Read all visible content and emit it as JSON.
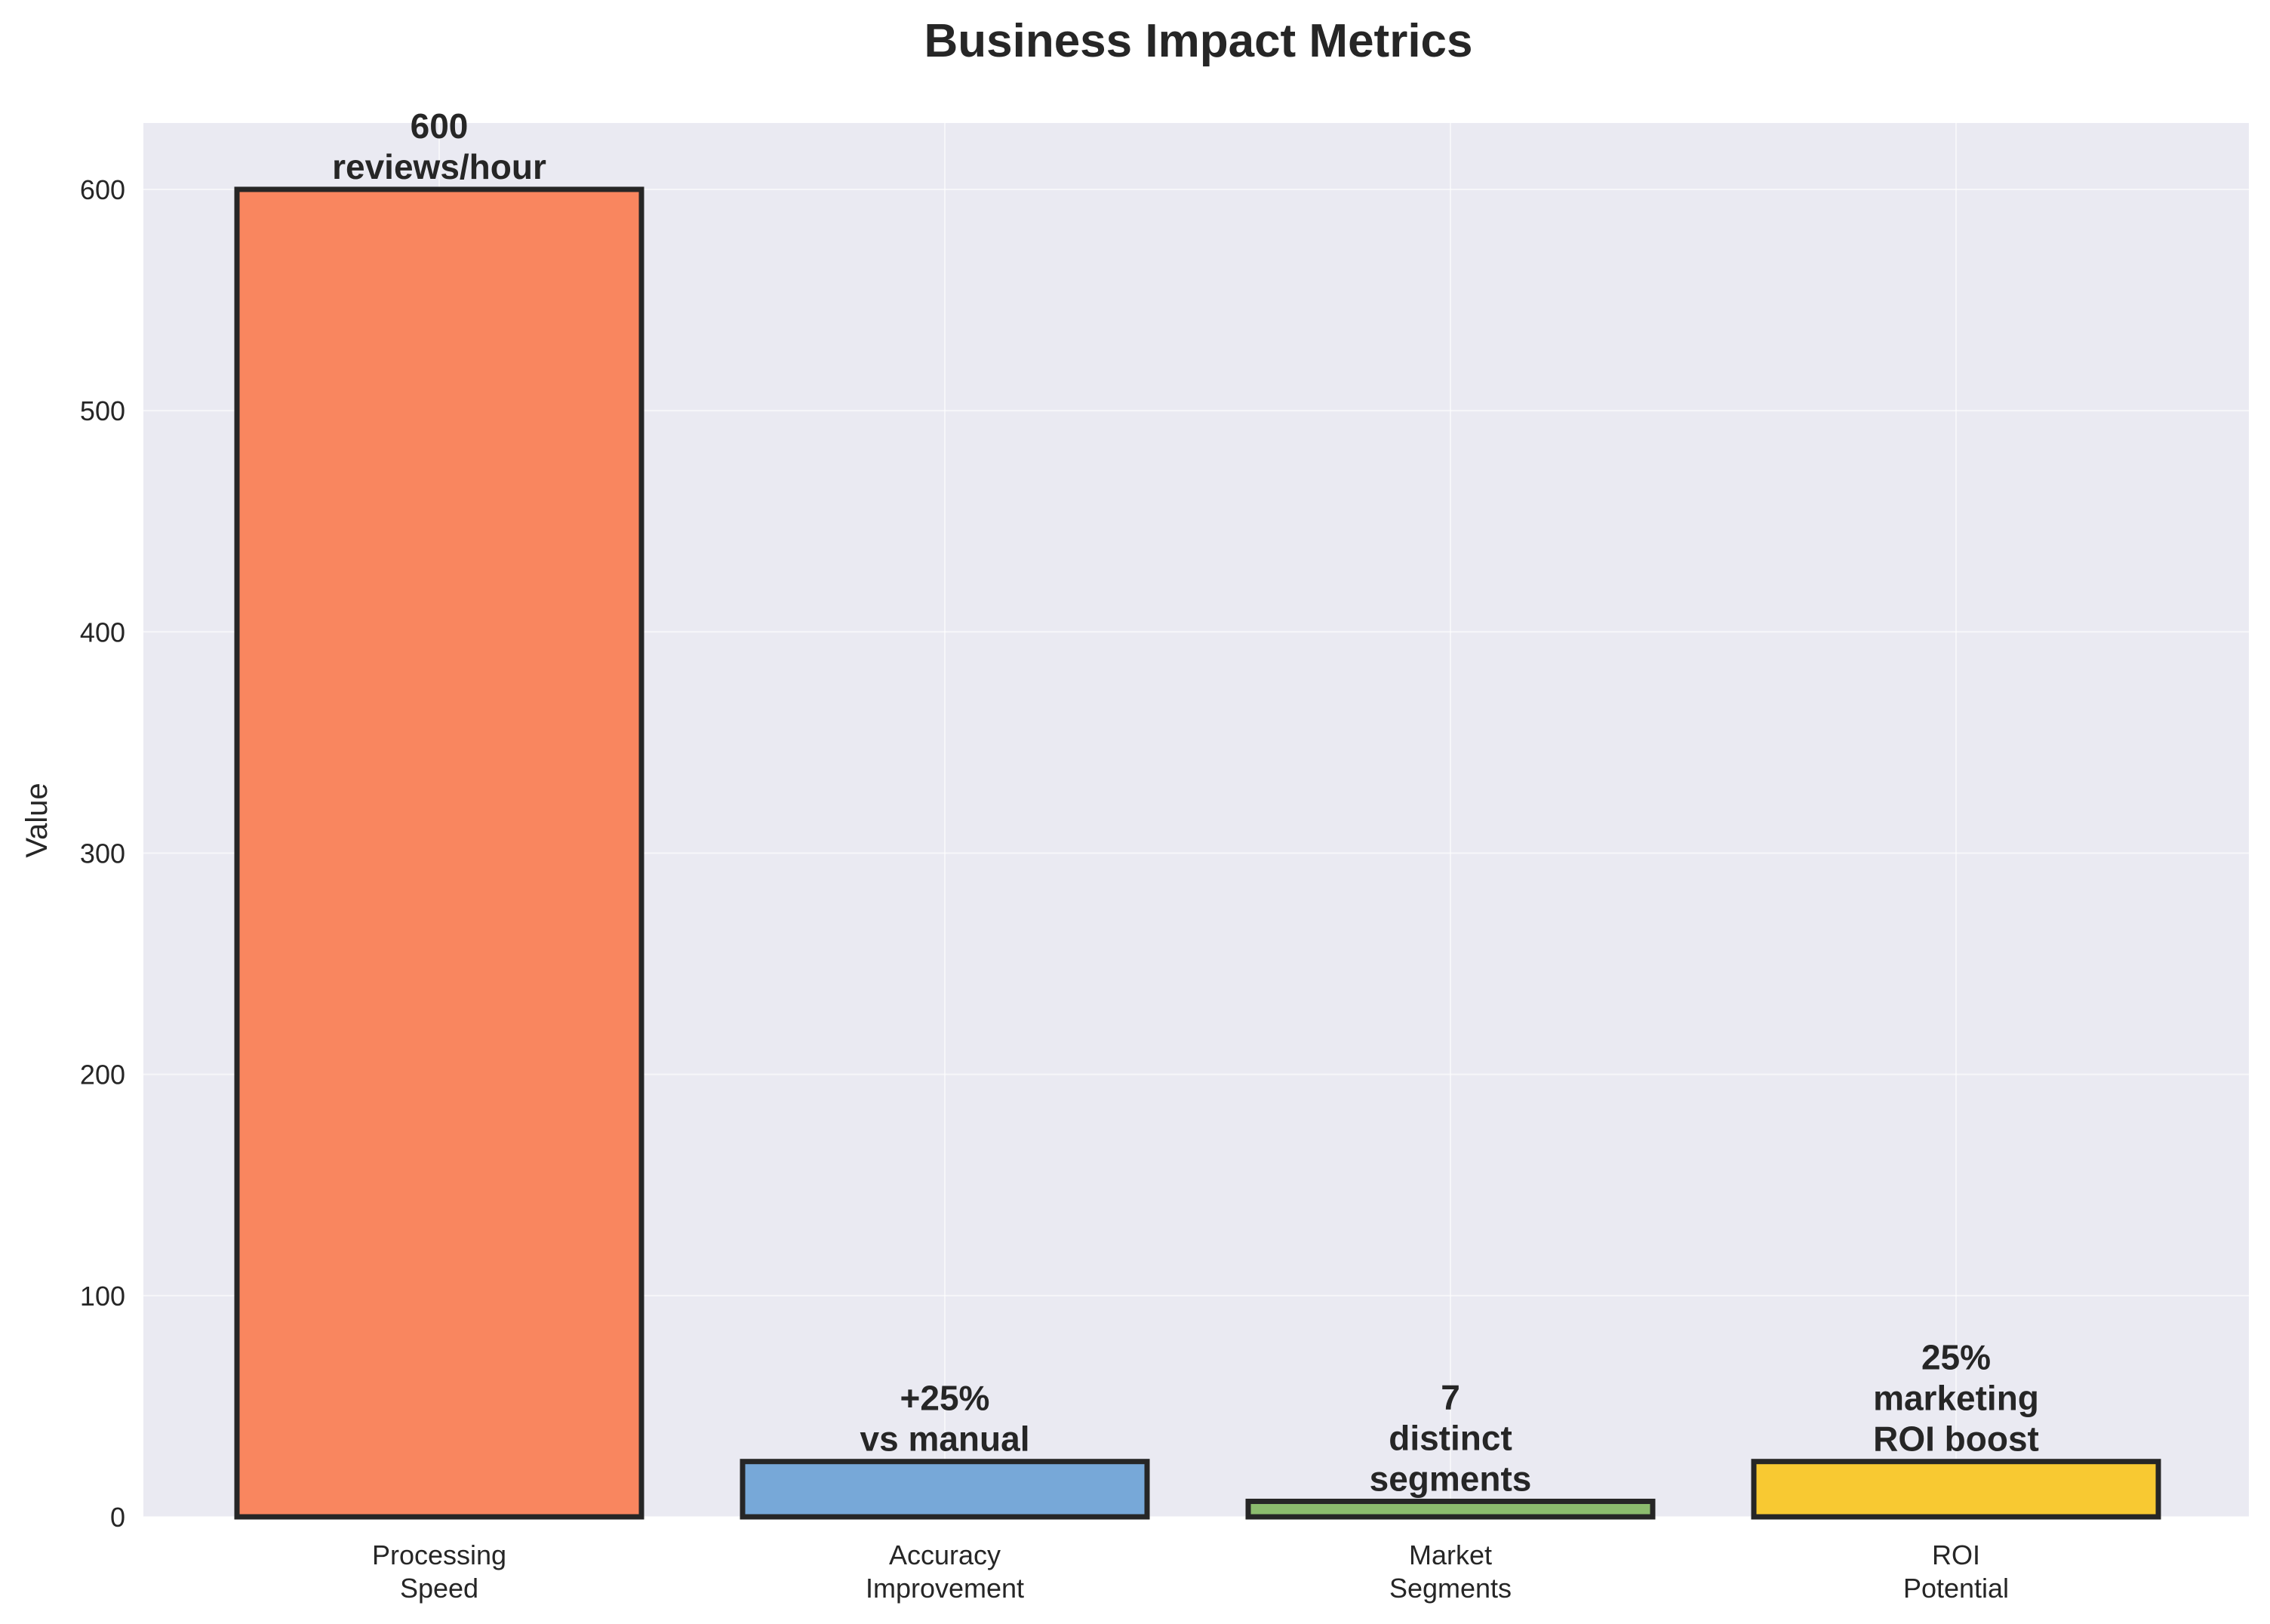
{
  "chart_data": {
    "type": "bar",
    "title": "Business Impact Metrics",
    "xlabel": "",
    "ylabel": "Value",
    "ylim": [
      0,
      630
    ],
    "yticks": [
      0,
      100,
      200,
      300,
      400,
      500,
      600
    ],
    "grid": true,
    "categories": [
      [
        "Processing",
        "Speed"
      ],
      [
        "Accuracy",
        "Improvement"
      ],
      [
        "Market",
        "Segments"
      ],
      [
        "ROI",
        "Potential"
      ]
    ],
    "values": [
      600,
      25,
      7,
      25
    ],
    "bar_labels": [
      [
        "600",
        "reviews/hour"
      ],
      [
        "+25%",
        "vs manual"
      ],
      [
        "7",
        "distinct",
        "segments"
      ],
      [
        "25%",
        "marketing",
        "ROI boost"
      ]
    ],
    "colors": [
      "#f9865f",
      "#77a8d8",
      "#8cbc6e",
      "#f8c932"
    ],
    "edge_color": "#262626",
    "background_color": "#eaeaf2"
  }
}
